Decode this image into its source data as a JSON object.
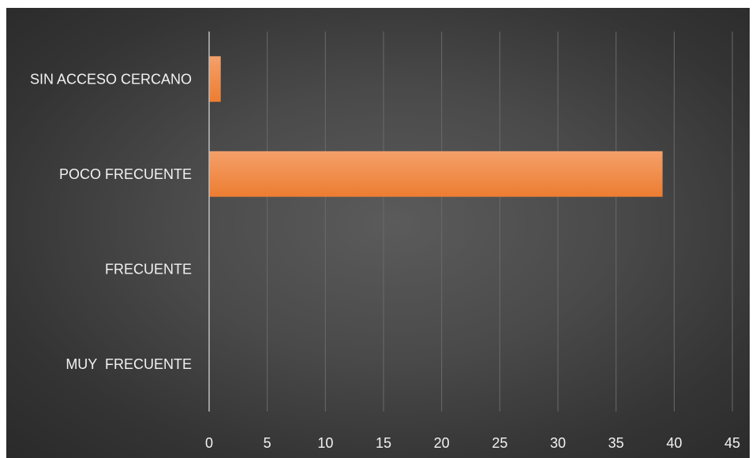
{
  "chart_data": {
    "type": "bar",
    "orientation": "horizontal",
    "title": "",
    "xlabel": "",
    "ylabel": "",
    "categories": [
      "MUY  FRECUENTE",
      "FRECUENTE",
      "POCO FRECUENTE",
      "SIN ACCESO CERCANO"
    ],
    "values": [
      0,
      0,
      39,
      1
    ],
    "xlim": [
      0,
      45
    ],
    "xticks": [
      "0",
      "5",
      "10",
      "15",
      "20",
      "25",
      "30",
      "35",
      "40",
      "45"
    ],
    "grid": "vertical",
    "legend": "none",
    "colors": {
      "bar": "#ed7d31",
      "bar_highlight": "#f4a06a",
      "gridline": "#6a6a6a",
      "axis": "#bfbfbf",
      "text": "#f2f2f2"
    }
  }
}
